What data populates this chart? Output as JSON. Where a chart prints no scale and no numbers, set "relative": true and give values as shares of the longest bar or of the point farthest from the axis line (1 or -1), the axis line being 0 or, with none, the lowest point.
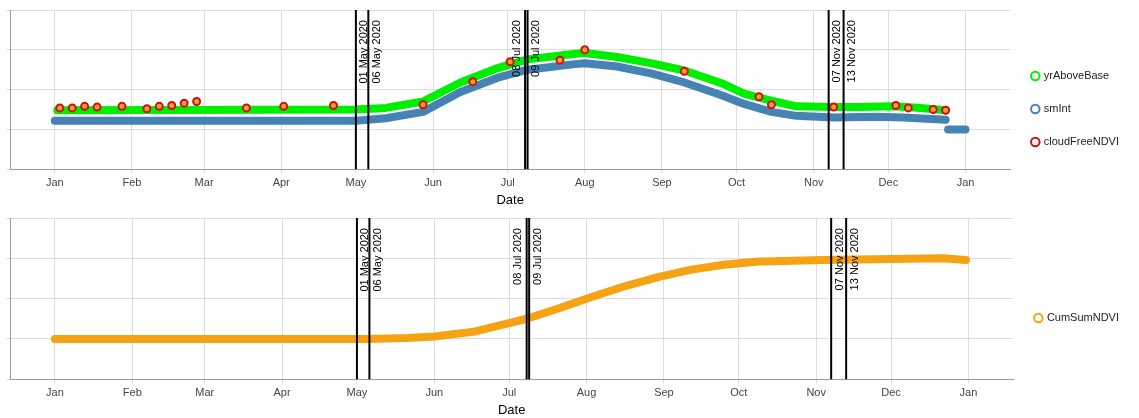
{
  "chart_data": [
    {
      "type": "line",
      "relative": true,
      "xlabel": "Date",
      "grid": true,
      "legend": "right",
      "tick_labels": "x",
      "line_style": "solid",
      "xlim": [
        "2019-12-14",
        "2021-01-19"
      ],
      "xticks": [
        {
          "value": "2020-01-01",
          "label": "Jan"
        },
        {
          "value": "2020-02-01",
          "label": "Feb"
        },
        {
          "value": "2020-03-01",
          "label": "Mar"
        },
        {
          "value": "2020-04-01",
          "label": "Apr"
        },
        {
          "value": "2020-05-01",
          "label": "May"
        },
        {
          "value": "2020-06-01",
          "label": "Jun"
        },
        {
          "value": "2020-07-01",
          "label": "Jul"
        },
        {
          "value": "2020-08-01",
          "label": "Aug"
        },
        {
          "value": "2020-09-01",
          "label": "Sep"
        },
        {
          "value": "2020-10-01",
          "label": "Oct"
        },
        {
          "value": "2020-11-01",
          "label": "Nov"
        },
        {
          "value": "2020-12-01",
          "label": "Dec"
        },
        {
          "value": "2021-01-01",
          "label": "Jan"
        }
      ],
      "series": [
        {
          "name": "yrAboveBase",
          "type": "line",
          "color": "#00ee00",
          "x": [
            "2020-01-02",
            "2020-05-01",
            "2020-05-13",
            "2020-05-28",
            "2020-06-12",
            "2020-06-27",
            "2020-07-09",
            "2020-07-28",
            "2020-08-01",
            "2020-08-14",
            "2020-08-28",
            "2020-09-10",
            "2020-09-25",
            "2020-10-04",
            "2020-10-15",
            "2020-10-25",
            "2020-11-09",
            "2020-11-19",
            "2020-12-03",
            "2020-12-14",
            "2020-12-24"
          ],
          "values": [
            0.24,
            0.25,
            0.27,
            0.35,
            0.59,
            0.77,
            0.88,
            0.95,
            0.96,
            0.91,
            0.83,
            0.74,
            0.58,
            0.45,
            0.36,
            0.29,
            0.28,
            0.28,
            0.29,
            0.27,
            0.24
          ]
        },
        {
          "name": "smInt",
          "type": "line",
          "color": "#4682b4",
          "x": [
            "2020-01-01",
            "2020-05-01",
            "2020-05-13",
            "2020-05-28",
            "2020-06-12",
            "2020-06-27",
            "2020-07-09",
            "2020-07-28",
            "2020-08-01",
            "2020-08-14",
            "2020-08-28",
            "2020-09-10",
            "2020-09-25",
            "2020-10-04",
            "2020-10-15",
            "2020-10-25",
            "2020-11-09",
            "2020-11-26",
            "2020-12-07",
            "2020-12-24",
            "2020-12-24T12:00",
            "2020-12-25",
            "2021-01-01"
          ],
          "values": [
            0.11,
            0.11,
            0.14,
            0.22,
            0.47,
            0.65,
            0.75,
            0.82,
            0.83,
            0.79,
            0.7,
            0.59,
            0.43,
            0.32,
            0.22,
            0.17,
            0.15,
            0.16,
            0.15,
            0.12,
            null,
            0,
            0
          ]
        },
        {
          "name": "cloudFreeNDVI",
          "type": "scatter",
          "marker": "circle",
          "color": "#cc1111",
          "x": [
            "2020-01-03",
            "2020-01-08",
            "2020-01-13",
            "2020-01-18",
            "2020-01-28",
            "2020-02-07",
            "2020-02-12",
            "2020-02-17",
            "2020-02-22",
            "2020-02-27",
            "2020-03-18",
            "2020-04-02",
            "2020-04-22",
            "2020-05-28",
            "2020-06-17",
            "2020-07-02",
            "2020-07-22",
            "2020-08-01",
            "2020-09-10",
            "2020-10-10",
            "2020-10-15",
            "2020-11-09",
            "2020-12-04",
            "2020-12-09",
            "2020-12-19",
            "2020-12-24"
          ],
          "values": [
            0.27,
            0.27,
            0.29,
            0.28,
            0.29,
            0.26,
            0.29,
            0.3,
            0.33,
            0.35,
            0.27,
            0.29,
            0.3,
            0.31,
            0.6,
            0.85,
            0.87,
            1,
            0.73,
            0.41,
            0.31,
            0.28,
            0.3,
            0.27,
            0.25,
            0.24
          ]
        }
      ],
      "ref_lines": [
        {
          "axis": "x",
          "value": "2020-05-01",
          "label": "01 May 2020"
        },
        {
          "axis": "x",
          "value": "2020-05-06",
          "label": "06 May 2020"
        },
        {
          "axis": "x",
          "value": "2020-07-08",
          "label": "08 Jul 2020"
        },
        {
          "axis": "x",
          "value": "2020-07-09",
          "label": "09 Jul 2020"
        },
        {
          "axis": "x",
          "value": "2020-11-07",
          "label": "07 Nov 2020"
        },
        {
          "axis": "x",
          "value": "2020-11-13",
          "label": "13 Nov 2020"
        }
      ]
    },
    {
      "type": "line",
      "relative": true,
      "xlabel": "Date",
      "grid": true,
      "legend": "right",
      "tick_labels": "x",
      "line_style": "solid",
      "xlim": [
        "2019-12-14",
        "2021-01-19"
      ],
      "xticks": [
        {
          "value": "2020-01-01",
          "label": "Jan"
        },
        {
          "value": "2020-02-01",
          "label": "Feb"
        },
        {
          "value": "2020-03-01",
          "label": "Mar"
        },
        {
          "value": "2020-04-01",
          "label": "Apr"
        },
        {
          "value": "2020-05-01",
          "label": "May"
        },
        {
          "value": "2020-06-01",
          "label": "Jun"
        },
        {
          "value": "2020-07-01",
          "label": "Jul"
        },
        {
          "value": "2020-08-01",
          "label": "Aug"
        },
        {
          "value": "2020-09-01",
          "label": "Sep"
        },
        {
          "value": "2020-10-01",
          "label": "Oct"
        },
        {
          "value": "2020-11-01",
          "label": "Nov"
        },
        {
          "value": "2020-12-01",
          "label": "Dec"
        },
        {
          "value": "2021-01-01",
          "label": "Jan"
        }
      ],
      "series": [
        {
          "name": "CumSumNDVI",
          "type": "line",
          "color": "#f5a313",
          "x": [
            "2020-01-01",
            "2020-05-05",
            "2020-05-21",
            "2020-06-01",
            "2020-06-17",
            "2020-07-08",
            "2020-07-21",
            "2020-08-03",
            "2020-08-16",
            "2020-08-30",
            "2020-09-12",
            "2020-09-25",
            "2020-10-09",
            "2020-11-04",
            "2020-12-01",
            "2020-12-22",
            "2020-12-31"
          ],
          "values": [
            0,
            0,
            0.01,
            0.03,
            0.09,
            0.25,
            0.38,
            0.52,
            0.65,
            0.77,
            0.86,
            0.92,
            0.96,
            0.98,
            0.99,
            1,
            0.98
          ]
        }
      ],
      "ref_lines": [
        {
          "axis": "x",
          "value": "2020-05-01",
          "label": "01 May 2020"
        },
        {
          "axis": "x",
          "value": "2020-05-06",
          "label": "06 May 2020"
        },
        {
          "axis": "x",
          "value": "2020-07-08",
          "label": "08 Jul 2020"
        },
        {
          "axis": "x",
          "value": "2020-07-09",
          "label": "09 Jul 2020"
        },
        {
          "axis": "x",
          "value": "2020-11-07",
          "label": "07 Nov 2020"
        },
        {
          "axis": "x",
          "value": "2020-11-13",
          "label": "13 Nov 2020"
        }
      ]
    }
  ]
}
